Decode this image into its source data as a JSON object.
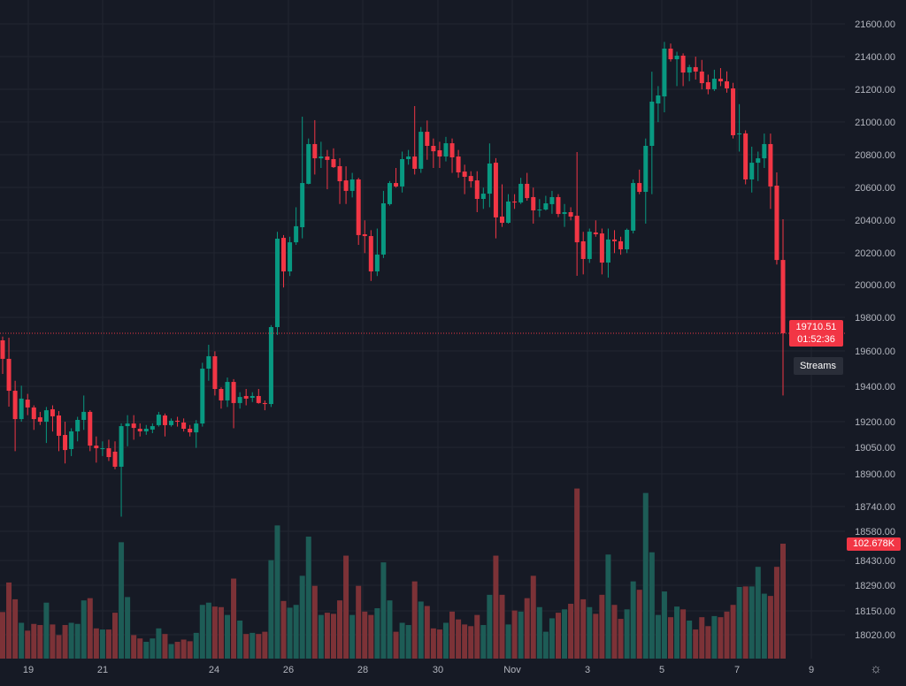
{
  "colors": {
    "background": "#161a25",
    "grid": "#222631",
    "up": "#089981",
    "down": "#f23645",
    "volume_up": "#1d5c56",
    "volume_down": "#7c3237",
    "text": "#b2b5be"
  },
  "last_price": {
    "value": "19710.51",
    "countdown": "01:52:36"
  },
  "streams_label": "Streams",
  "volume_label": "102.678K",
  "settings_icon": "gear-icon",
  "chart_data": {
    "type": "candlestick",
    "title": "",
    "xlabel": "",
    "ylabel": "",
    "ylim": [
      18000,
      21650
    ],
    "grid": true,
    "x_tick_labels": [
      "19",
      "21",
      "24",
      "26",
      "28",
      "30",
      "Nov",
      "3",
      "5",
      "7",
      "9"
    ],
    "y_tick_labels": [
      "21600.00",
      "21400.00",
      "21200.00",
      "21000.00",
      "20800.00",
      "20600.00",
      "20400.00",
      "20200.00",
      "20000.00",
      "19800.00",
      "19600.00",
      "19400.00",
      "19200.00",
      "19050.00",
      "18900.00",
      "18740.00",
      "18580.00",
      "18430.00",
      "18290.00",
      "18150.00",
      "18020.00"
    ],
    "ohlc_fields": [
      "open",
      "high",
      "low",
      "close"
    ],
    "candles": [
      [
        19667,
        19690,
        19462,
        19554
      ],
      [
        19554,
        19683,
        19262,
        19359
      ],
      [
        19359,
        19420,
        18990,
        19186
      ],
      [
        19186,
        19390,
        19170,
        19311
      ],
      [
        19305,
        19340,
        19210,
        19257
      ],
      [
        19257,
        19270,
        19120,
        19186
      ],
      [
        19197,
        19230,
        19150,
        19170
      ],
      [
        19170,
        19260,
        19040,
        19240
      ],
      [
        19246,
        19270,
        19110,
        19203
      ],
      [
        19208,
        19235,
        18990,
        19084
      ],
      [
        19089,
        19170,
        18915,
        18997
      ],
      [
        19003,
        19130,
        18960,
        19111
      ],
      [
        19111,
        19200,
        19050,
        19181
      ],
      [
        19181,
        19330,
        19120,
        19230
      ],
      [
        19230,
        19240,
        18990,
        19024
      ],
      [
        19024,
        19080,
        18920,
        19008
      ],
      [
        19003,
        19050,
        18960,
        19008
      ],
      [
        19008,
        19060,
        18930,
        18954
      ],
      [
        18987,
        19050,
        18880,
        18895
      ],
      [
        18895,
        19160,
        18590,
        19143
      ],
      [
        19143,
        19210,
        19020,
        19159
      ],
      [
        19159,
        19210,
        19060,
        19132
      ],
      [
        19127,
        19160,
        19080,
        19111
      ],
      [
        19111,
        19150,
        19090,
        19127
      ],
      [
        19122,
        19160,
        19100,
        19143
      ],
      [
        19149,
        19230,
        19140,
        19213
      ],
      [
        19208,
        19220,
        19080,
        19149
      ],
      [
        19149,
        19190,
        19140,
        19176
      ],
      [
        19176,
        19200,
        19140,
        19170
      ],
      [
        19165,
        19190,
        19110,
        19127
      ],
      [
        19127,
        19150,
        19080,
        19105
      ],
      [
        19105,
        19180,
        19010,
        19159
      ],
      [
        19159,
        19530,
        19140,
        19494
      ],
      [
        19494,
        19640,
        19420,
        19570
      ],
      [
        19570,
        19600,
        19330,
        19370
      ],
      [
        19370,
        19380,
        19250,
        19300
      ],
      [
        19300,
        19440,
        19260,
        19413
      ],
      [
        19413,
        19430,
        19130,
        19284
      ],
      [
        19284,
        19350,
        19250,
        19321
      ],
      [
        19327,
        19370,
        19270,
        19311
      ],
      [
        19316,
        19350,
        19290,
        19327
      ],
      [
        19327,
        19370,
        19280,
        19284
      ],
      [
        19284,
        19300,
        19240,
        19278
      ],
      [
        19278,
        19760,
        19260,
        19748
      ],
      [
        19748,
        20330,
        19700,
        20288
      ],
      [
        20293,
        20310,
        19990,
        20088
      ],
      [
        20088,
        20300,
        20060,
        20266
      ],
      [
        20266,
        20480,
        20250,
        20364
      ],
      [
        20358,
        21033,
        20290,
        20628
      ],
      [
        20623,
        20900,
        20620,
        20866
      ],
      [
        20866,
        21012,
        20680,
        20779
      ],
      [
        20779,
        20880,
        20720,
        20790
      ],
      [
        20790,
        20830,
        20590,
        20769
      ],
      [
        20774,
        20840,
        20720,
        20725
      ],
      [
        20731,
        20780,
        20500,
        20639
      ],
      [
        20644,
        20730,
        20500,
        20580
      ],
      [
        20580,
        20690,
        20540,
        20650
      ],
      [
        20650,
        20660,
        20250,
        20310
      ],
      [
        20315,
        20400,
        20200,
        20304
      ],
      [
        20304,
        20340,
        20030,
        20088
      ],
      [
        20088,
        20350,
        20060,
        20191
      ],
      [
        20191,
        20580,
        20170,
        20504
      ],
      [
        20499,
        20640,
        20490,
        20628
      ],
      [
        20628,
        20720,
        20600,
        20607
      ],
      [
        20607,
        20820,
        20570,
        20774
      ],
      [
        20774,
        20830,
        20740,
        20790
      ],
      [
        20790,
        21098,
        20680,
        20715
      ],
      [
        20715,
        20970,
        20690,
        20941
      ],
      [
        20941,
        21010,
        20770,
        20855
      ],
      [
        20855,
        20900,
        20720,
        20822
      ],
      [
        20828,
        20880,
        20720,
        20790
      ],
      [
        20790,
        20910,
        20760,
        20871
      ],
      [
        20871,
        20900,
        20690,
        20785
      ],
      [
        20790,
        20830,
        20660,
        20693
      ],
      [
        20698,
        20740,
        20560,
        20666
      ],
      [
        20671,
        20700,
        20600,
        20639
      ],
      [
        20644,
        20700,
        20450,
        20531
      ],
      [
        20531,
        20600,
        20470,
        20563
      ],
      [
        20563,
        20870,
        20480,
        20747
      ],
      [
        20752,
        20780,
        20290,
        20418
      ],
      [
        20423,
        20620,
        20360,
        20385
      ],
      [
        20385,
        20560,
        20380,
        20515
      ],
      [
        20515,
        20560,
        20470,
        20509
      ],
      [
        20509,
        20660,
        20500,
        20623
      ],
      [
        20623,
        20690,
        20520,
        20536
      ],
      [
        20542,
        20600,
        20380,
        20461
      ],
      [
        20461,
        20530,
        20420,
        20466
      ],
      [
        20466,
        20550,
        20460,
        20504
      ],
      [
        20499,
        20580,
        20440,
        20542
      ],
      [
        20542,
        20560,
        20420,
        20439
      ],
      [
        20439,
        20500,
        20360,
        20450
      ],
      [
        20450,
        20480,
        20400,
        20423
      ],
      [
        20428,
        20817,
        20061,
        20266
      ],
      [
        20272,
        20330,
        20070,
        20164
      ],
      [
        20164,
        20350,
        20140,
        20331
      ],
      [
        20326,
        20400,
        20300,
        20315
      ],
      [
        20320,
        20350,
        20070,
        20142
      ],
      [
        20142,
        20350,
        20050,
        20283
      ],
      [
        20283,
        20340,
        20200,
        20272
      ],
      [
        20272,
        20300,
        20190,
        20223
      ],
      [
        20223,
        20350,
        20200,
        20342
      ],
      [
        20337,
        20650,
        20320,
        20628
      ],
      [
        20628,
        20710,
        20560,
        20574
      ],
      [
        20574,
        20900,
        20380,
        20855
      ],
      [
        20855,
        21308,
        20560,
        21125
      ],
      [
        21114,
        21220,
        21000,
        21163
      ],
      [
        21157,
        21490,
        21060,
        21449
      ],
      [
        21449,
        21480,
        21370,
        21384
      ],
      [
        21384,
        21430,
        21220,
        21406
      ],
      [
        21406,
        21420,
        21220,
        21303
      ],
      [
        21303,
        21350,
        21250,
        21336
      ],
      [
        21336,
        21400,
        21260,
        21309
      ],
      [
        21309,
        21380,
        21200,
        21238
      ],
      [
        21244,
        21290,
        21170,
        21201
      ],
      [
        21201,
        21320,
        21190,
        21265
      ],
      [
        21265,
        21330,
        21220,
        21249
      ],
      [
        21249,
        21310,
        21180,
        21206
      ],
      [
        21206,
        21240,
        20900,
        20920
      ],
      [
        20925,
        21110,
        20820,
        20931
      ],
      [
        20931,
        20950,
        20620,
        20650
      ],
      [
        20650,
        20850,
        20570,
        20752
      ],
      [
        20752,
        20820,
        20640,
        20779
      ],
      [
        20779,
        20930,
        20720,
        20866
      ],
      [
        20866,
        20930,
        20470,
        20607
      ],
      [
        20612,
        20693,
        20130,
        20158
      ],
      [
        20158,
        20407,
        19330,
        19710.51
      ]
    ],
    "volume_unit": "K",
    "volume": [
      41.6,
      68,
      53,
      32,
      25,
      31,
      30,
      50,
      30.5,
      21,
      30,
      32,
      31,
      52,
      54,
      27,
      26,
      26,
      41,
      104,
      55,
      21,
      18,
      15,
      18,
      27,
      22,
      13,
      15,
      17,
      15.5,
      23,
      48,
      50,
      46.5,
      46,
      39,
      71.5,
      34,
      22,
      23,
      22,
      24,
      88,
      119,
      51.5,
      45.5,
      48,
      74,
      109,
      65,
      39,
      41,
      40,
      52,
      92,
      39,
      65,
      42,
      39,
      45,
      86,
      52,
      24,
      32,
      30,
      69,
      51,
      47,
      27,
      26,
      32,
      42,
      35,
      30.5,
      29,
      39,
      30,
      57,
      92,
      57,
      30.5,
      43,
      42,
      54,
      74,
      46,
      24,
      36,
      41,
      44,
      49,
      152,
      53,
      46,
      40,
      57,
      93,
      48,
      35.5,
      44,
      69,
      61.5,
      148,
      95,
      39,
      60,
      37,
      46.5,
      44,
      34,
      26,
      37,
      29,
      38,
      37,
      42,
      48,
      64,
      64.5,
      64.5,
      82,
      58,
      56,
      82,
      102.678
    ]
  }
}
